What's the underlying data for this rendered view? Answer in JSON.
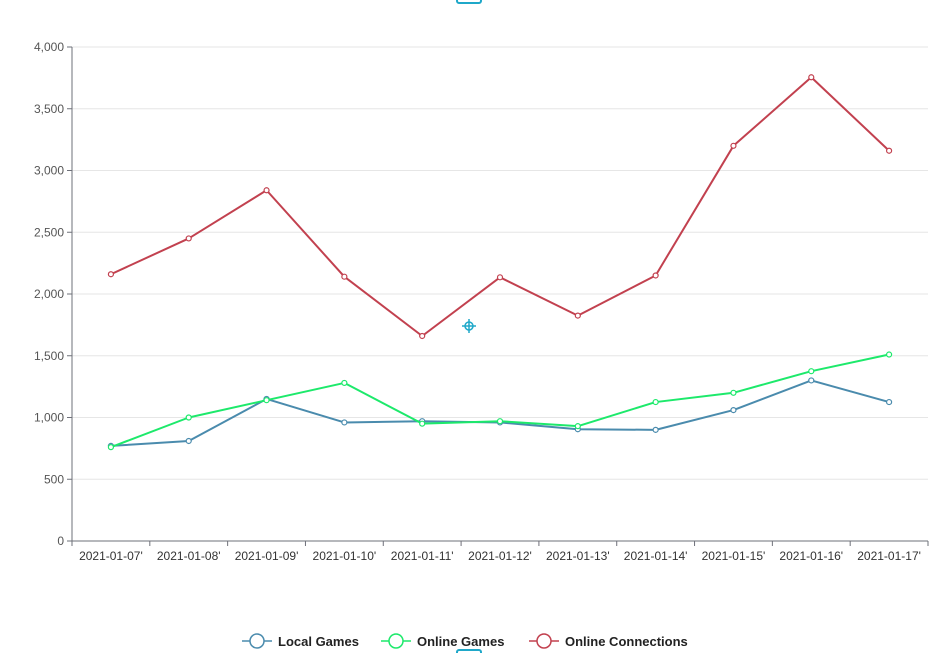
{
  "chart_data": {
    "type": "line",
    "title": "",
    "xlabel": "",
    "ylabel": "",
    "categories": [
      "2021-01-07'",
      "2021-01-08'",
      "2021-01-09'",
      "2021-01-10'",
      "2021-01-11'",
      "2021-01-12'",
      "2021-01-13'",
      "2021-01-14'",
      "2021-01-15'",
      "2021-01-16'",
      "2021-01-17'"
    ],
    "y_ticks": [
      "0",
      "500",
      "1,000",
      "1,500",
      "2,000",
      "2,500",
      "3,000",
      "3,500",
      "4,000"
    ],
    "ylim": [
      0,
      4000
    ],
    "grid": true,
    "legend_position": "bottom-center",
    "series": [
      {
        "name": "Local Games",
        "color": "#4a8bad",
        "values": [
          770,
          810,
          1150,
          960,
          970,
          960,
          905,
          900,
          1060,
          1300,
          1125
        ]
      },
      {
        "name": "Online Games",
        "color": "#1de96b",
        "values": [
          760,
          1000,
          1140,
          1280,
          950,
          970,
          930,
          1125,
          1200,
          1375,
          1510
        ]
      },
      {
        "name": "Online Connections",
        "color": "#c2414f",
        "values": [
          2160,
          2450,
          2840,
          2140,
          1660,
          2135,
          1825,
          2150,
          3200,
          3755,
          3160
        ]
      }
    ]
  }
}
